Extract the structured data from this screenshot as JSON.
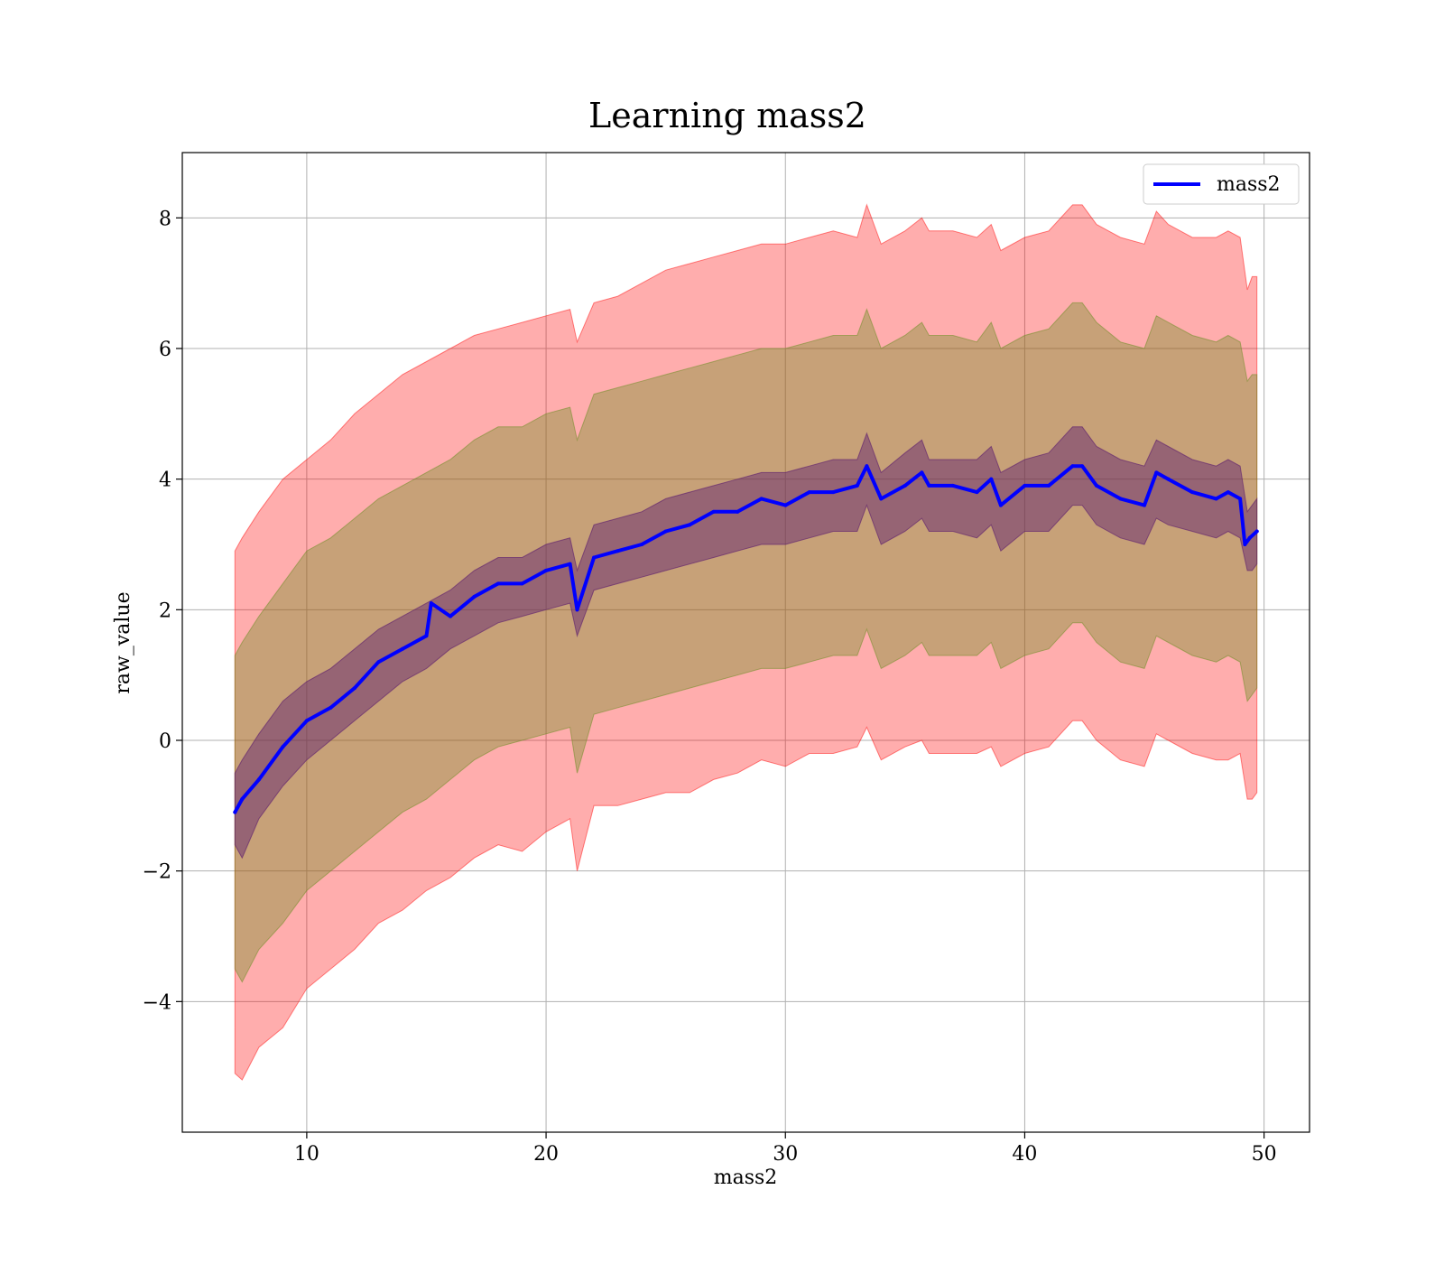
{
  "chart_data": {
    "type": "line",
    "title": "Learning mass2",
    "xlabel": "mass2",
    "ylabel": "raw_value",
    "xlim": [
      4.8,
      51.9
    ],
    "ylim": [
      -6.0,
      9.0
    ],
    "x_ticks": [
      10,
      20,
      30,
      40,
      50
    ],
    "y_ticks": [
      -4,
      -2,
      0,
      2,
      4,
      6,
      8
    ],
    "x_tick_labels": [
      "10",
      "20",
      "30",
      "40",
      "50"
    ],
    "y_tick_labels": [
      "−4",
      "−2",
      "0",
      "2",
      "4",
      "6",
      "8"
    ],
    "grid": true,
    "legend": {
      "position": "top-right",
      "entries": [
        "mass2"
      ]
    },
    "series": [
      {
        "name": "mass2",
        "style": "line",
        "color": "#0000ff",
        "x": [
          7.0,
          7.3,
          8.0,
          9.0,
          10.0,
          11.0,
          12.0,
          13.0,
          14.0,
          15.0,
          15.2,
          16.0,
          17.0,
          18.0,
          19.0,
          20.0,
          21.0,
          21.3,
          22.0,
          23.0,
          24.0,
          25.0,
          26.0,
          27.0,
          28.0,
          29.0,
          30.0,
          31.0,
          32.0,
          33.0,
          33.4,
          34.0,
          35.0,
          35.7,
          36.0,
          37.0,
          38.0,
          38.6,
          39.0,
          40.0,
          41.0,
          42.0,
          42.4,
          43.0,
          44.0,
          45.0,
          45.5,
          46.0,
          47.0,
          48.0,
          48.5,
          49.0,
          49.2,
          49.4,
          49.7
        ],
        "y": [
          -1.1,
          -0.9,
          -0.6,
          -0.1,
          0.3,
          0.5,
          0.8,
          1.2,
          1.4,
          1.6,
          2.1,
          1.9,
          2.2,
          2.4,
          2.4,
          2.6,
          2.7,
          2.0,
          2.8,
          2.9,
          3.0,
          3.2,
          3.3,
          3.5,
          3.5,
          3.7,
          3.6,
          3.8,
          3.8,
          3.9,
          4.2,
          3.7,
          3.9,
          4.1,
          3.9,
          3.9,
          3.8,
          4.0,
          3.6,
          3.9,
          3.9,
          4.2,
          4.2,
          3.9,
          3.7,
          3.6,
          4.1,
          4.0,
          3.8,
          3.7,
          3.8,
          3.7,
          3.0,
          3.1,
          3.2
        ]
      },
      {
        "name": "",
        "style": "band",
        "color": "#ff0000",
        "opacity": 0.32,
        "x": [
          7.0,
          7.3,
          8.0,
          9.0,
          10.0,
          11.0,
          12.0,
          13.0,
          14.0,
          15.0,
          16.0,
          17.0,
          18.0,
          19.0,
          20.0,
          21.0,
          21.3,
          22.0,
          23.0,
          24.0,
          25.0,
          26.0,
          27.0,
          28.0,
          29.0,
          30.0,
          31.0,
          32.0,
          33.0,
          33.4,
          34.0,
          35.0,
          35.7,
          36.0,
          37.0,
          38.0,
          38.6,
          39.0,
          40.0,
          41.0,
          42.0,
          42.4,
          43.0,
          44.0,
          45.0,
          45.5,
          46.0,
          47.0,
          48.0,
          48.5,
          49.0,
          49.3,
          49.5,
          49.7
        ],
        "lower": [
          -5.1,
          -5.2,
          -4.7,
          -4.4,
          -3.8,
          -3.5,
          -3.2,
          -2.8,
          -2.6,
          -2.3,
          -2.1,
          -1.8,
          -1.6,
          -1.7,
          -1.4,
          -1.2,
          -2.0,
          -1.0,
          -1.0,
          -0.9,
          -0.8,
          -0.8,
          -0.6,
          -0.5,
          -0.3,
          -0.4,
          -0.2,
          -0.2,
          -0.1,
          0.2,
          -0.3,
          -0.1,
          0.0,
          -0.2,
          -0.2,
          -0.2,
          -0.1,
          -0.4,
          -0.2,
          -0.1,
          0.3,
          0.3,
          0.0,
          -0.3,
          -0.4,
          0.1,
          0.0,
          -0.2,
          -0.3,
          -0.3,
          -0.2,
          -0.9,
          -0.9,
          -0.8
        ],
        "upper": [
          2.9,
          3.1,
          3.5,
          4.0,
          4.3,
          4.6,
          5.0,
          5.3,
          5.6,
          5.8,
          6.0,
          6.2,
          6.3,
          6.4,
          6.5,
          6.6,
          6.1,
          6.7,
          6.8,
          7.0,
          7.2,
          7.3,
          7.4,
          7.5,
          7.6,
          7.6,
          7.7,
          7.8,
          7.7,
          8.2,
          7.6,
          7.8,
          8.0,
          7.8,
          7.8,
          7.7,
          7.9,
          7.5,
          7.7,
          7.8,
          8.2,
          8.2,
          7.9,
          7.7,
          7.6,
          8.1,
          7.9,
          7.7,
          7.7,
          7.8,
          7.7,
          6.9,
          7.1,
          7.1
        ]
      },
      {
        "name": "",
        "style": "band",
        "color": "#6b8e23",
        "opacity": 0.38,
        "x": [
          7.0,
          7.3,
          8.0,
          9.0,
          10.0,
          11.0,
          12.0,
          13.0,
          14.0,
          15.0,
          16.0,
          17.0,
          18.0,
          19.0,
          20.0,
          21.0,
          21.3,
          22.0,
          23.0,
          24.0,
          25.0,
          26.0,
          27.0,
          28.0,
          29.0,
          30.0,
          31.0,
          32.0,
          33.0,
          33.4,
          34.0,
          35.0,
          35.7,
          36.0,
          37.0,
          38.0,
          38.6,
          39.0,
          40.0,
          41.0,
          42.0,
          42.4,
          43.0,
          44.0,
          45.0,
          45.5,
          46.0,
          47.0,
          48.0,
          48.5,
          49.0,
          49.3,
          49.5,
          49.7
        ],
        "lower": [
          -3.5,
          -3.7,
          -3.2,
          -2.8,
          -2.3,
          -2.0,
          -1.7,
          -1.4,
          -1.1,
          -0.9,
          -0.6,
          -0.3,
          -0.1,
          0.0,
          0.1,
          0.2,
          -0.5,
          0.4,
          0.5,
          0.6,
          0.7,
          0.8,
          0.9,
          1.0,
          1.1,
          1.1,
          1.2,
          1.3,
          1.3,
          1.7,
          1.1,
          1.3,
          1.5,
          1.3,
          1.3,
          1.3,
          1.5,
          1.1,
          1.3,
          1.4,
          1.8,
          1.8,
          1.5,
          1.2,
          1.1,
          1.6,
          1.5,
          1.3,
          1.2,
          1.3,
          1.2,
          0.6,
          0.7,
          0.8
        ],
        "upper": [
          1.3,
          1.5,
          1.9,
          2.4,
          2.9,
          3.1,
          3.4,
          3.7,
          3.9,
          4.1,
          4.3,
          4.6,
          4.8,
          4.8,
          5.0,
          5.1,
          4.6,
          5.3,
          5.4,
          5.5,
          5.6,
          5.7,
          5.8,
          5.9,
          6.0,
          6.0,
          6.1,
          6.2,
          6.2,
          6.6,
          6.0,
          6.2,
          6.4,
          6.2,
          6.2,
          6.1,
          6.4,
          6.0,
          6.2,
          6.3,
          6.7,
          6.7,
          6.4,
          6.1,
          6.0,
          6.5,
          6.4,
          6.2,
          6.1,
          6.2,
          6.1,
          5.5,
          5.6,
          5.6
        ]
      },
      {
        "name": "",
        "style": "band",
        "color": "#5a1a6e",
        "opacity": 0.45,
        "x": [
          7.0,
          7.3,
          8.0,
          9.0,
          10.0,
          11.0,
          12.0,
          13.0,
          14.0,
          15.0,
          16.0,
          17.0,
          18.0,
          19.0,
          20.0,
          21.0,
          21.3,
          22.0,
          23.0,
          24.0,
          25.0,
          26.0,
          27.0,
          28.0,
          29.0,
          30.0,
          31.0,
          32.0,
          33.0,
          33.4,
          34.0,
          35.0,
          35.7,
          36.0,
          37.0,
          38.0,
          38.6,
          39.0,
          40.0,
          41.0,
          42.0,
          42.4,
          43.0,
          44.0,
          45.0,
          45.5,
          46.0,
          47.0,
          48.0,
          48.5,
          49.0,
          49.3,
          49.5,
          49.7
        ],
        "lower": [
          -1.6,
          -1.8,
          -1.2,
          -0.7,
          -0.3,
          0.0,
          0.3,
          0.6,
          0.9,
          1.1,
          1.4,
          1.6,
          1.8,
          1.9,
          2.0,
          2.1,
          1.6,
          2.3,
          2.4,
          2.5,
          2.6,
          2.7,
          2.8,
          2.9,
          3.0,
          3.0,
          3.1,
          3.2,
          3.2,
          3.6,
          3.0,
          3.2,
          3.4,
          3.2,
          3.2,
          3.1,
          3.3,
          2.9,
          3.2,
          3.2,
          3.6,
          3.6,
          3.3,
          3.1,
          3.0,
          3.4,
          3.3,
          3.2,
          3.1,
          3.2,
          3.1,
          2.6,
          2.6,
          2.7
        ],
        "upper": [
          -0.5,
          -0.3,
          0.1,
          0.6,
          0.9,
          1.1,
          1.4,
          1.7,
          1.9,
          2.1,
          2.3,
          2.6,
          2.8,
          2.8,
          3.0,
          3.1,
          2.6,
          3.3,
          3.4,
          3.5,
          3.7,
          3.8,
          3.9,
          4.0,
          4.1,
          4.1,
          4.2,
          4.3,
          4.3,
          4.7,
          4.1,
          4.4,
          4.6,
          4.3,
          4.3,
          4.3,
          4.5,
          4.1,
          4.3,
          4.4,
          4.8,
          4.8,
          4.5,
          4.3,
          4.2,
          4.6,
          4.5,
          4.3,
          4.2,
          4.3,
          4.2,
          3.5,
          3.6,
          3.7
        ]
      }
    ]
  }
}
